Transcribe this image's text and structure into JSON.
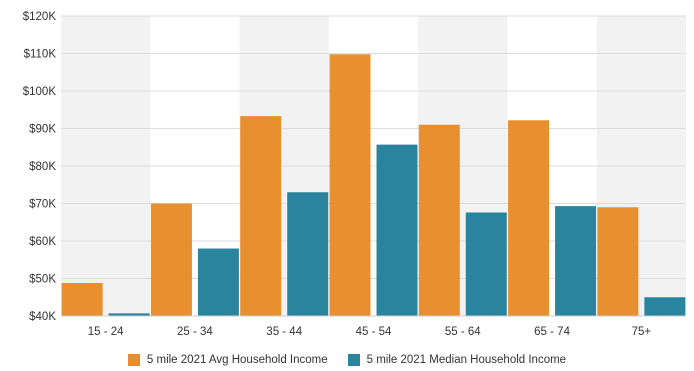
{
  "colors": {
    "avg": "#E8902F",
    "median": "#2A849E",
    "band": "#F2F2F2",
    "grid": "#DDDDDD"
  },
  "chart_data": {
    "type": "bar",
    "title": "",
    "xlabel": "",
    "ylabel": "",
    "categories": [
      "15 - 24",
      "25 - 34",
      "35 - 44",
      "45 - 54",
      "55 - 64",
      "65 - 74",
      "75+"
    ],
    "series": [
      {
        "name": "5 mile 2021 Avg Household Income",
        "values": [
          48800,
          70000,
          93300,
          109800,
          91000,
          92200,
          69000
        ]
      },
      {
        "name": "5 mile 2021 Median Household Income",
        "values": [
          40700,
          58000,
          73000,
          85700,
          67600,
          69300,
          45000
        ]
      }
    ],
    "ylim": [
      40000,
      120000
    ],
    "yticks": [
      "$40K",
      "$50K",
      "$60K",
      "$70K",
      "$80K",
      "$90K",
      "$100K",
      "$110K",
      "$120K"
    ],
    "grid": true,
    "alternating_column_bands": true,
    "legend_position": "bottom"
  }
}
